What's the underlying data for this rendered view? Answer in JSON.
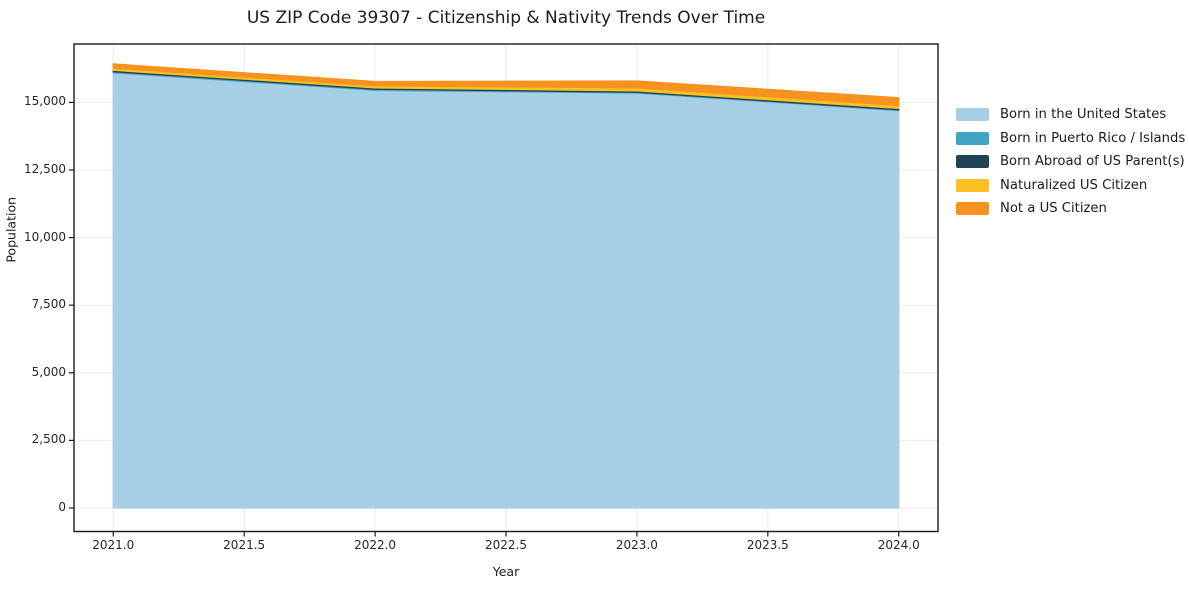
{
  "chart_data": {
    "type": "area",
    "stacked": true,
    "title": "US ZIP Code 39307 - Citizenship & Nativity Trends Over Time",
    "xlabel": "Year",
    "ylabel": "Population",
    "x": [
      2021,
      2022,
      2023,
      2024
    ],
    "series": [
      {
        "name": "Born in the United States",
        "color": "#A6CFE5",
        "values": [
          16100,
          15450,
          15350,
          14700
        ]
      },
      {
        "name": "Born in Puerto Rico / Islands",
        "color": "#3FA5C3",
        "values": [
          40,
          40,
          30,
          30
        ]
      },
      {
        "name": "Born Abroad of US Parent(s)",
        "color": "#1F4456",
        "values": [
          50,
          50,
          50,
          50
        ]
      },
      {
        "name": "Naturalized US Citizen",
        "color": "#FCBF24",
        "values": [
          80,
          80,
          110,
          110
        ]
      },
      {
        "name": "Not a US Citizen",
        "color": "#F6921E",
        "values": [
          150,
          150,
          250,
          280
        ]
      }
    ],
    "xticks": [
      2021.0,
      2021.5,
      2022.0,
      2022.5,
      2023.0,
      2023.5,
      2024.0
    ],
    "xtick_labels": [
      "2021.0",
      "2021.5",
      "2022.0",
      "2022.5",
      "2023.0",
      "2023.5",
      "2024.0"
    ],
    "yticks": [
      0,
      2500,
      5000,
      7500,
      10000,
      12500,
      15000
    ],
    "ytick_labels": [
      "0",
      "2,500",
      "5,000",
      "7,500",
      "10,000",
      "12,500",
      "15,000"
    ],
    "xlim": [
      2020.85,
      2024.15
    ],
    "ylim": [
      -870,
      17160
    ],
    "grid": true,
    "legend_position": "right-outside",
    "colors": {
      "grid": "#ebebeb",
      "axis": "#1a1a1a",
      "text": "#1c1c1c",
      "background": "#ffffff"
    }
  }
}
